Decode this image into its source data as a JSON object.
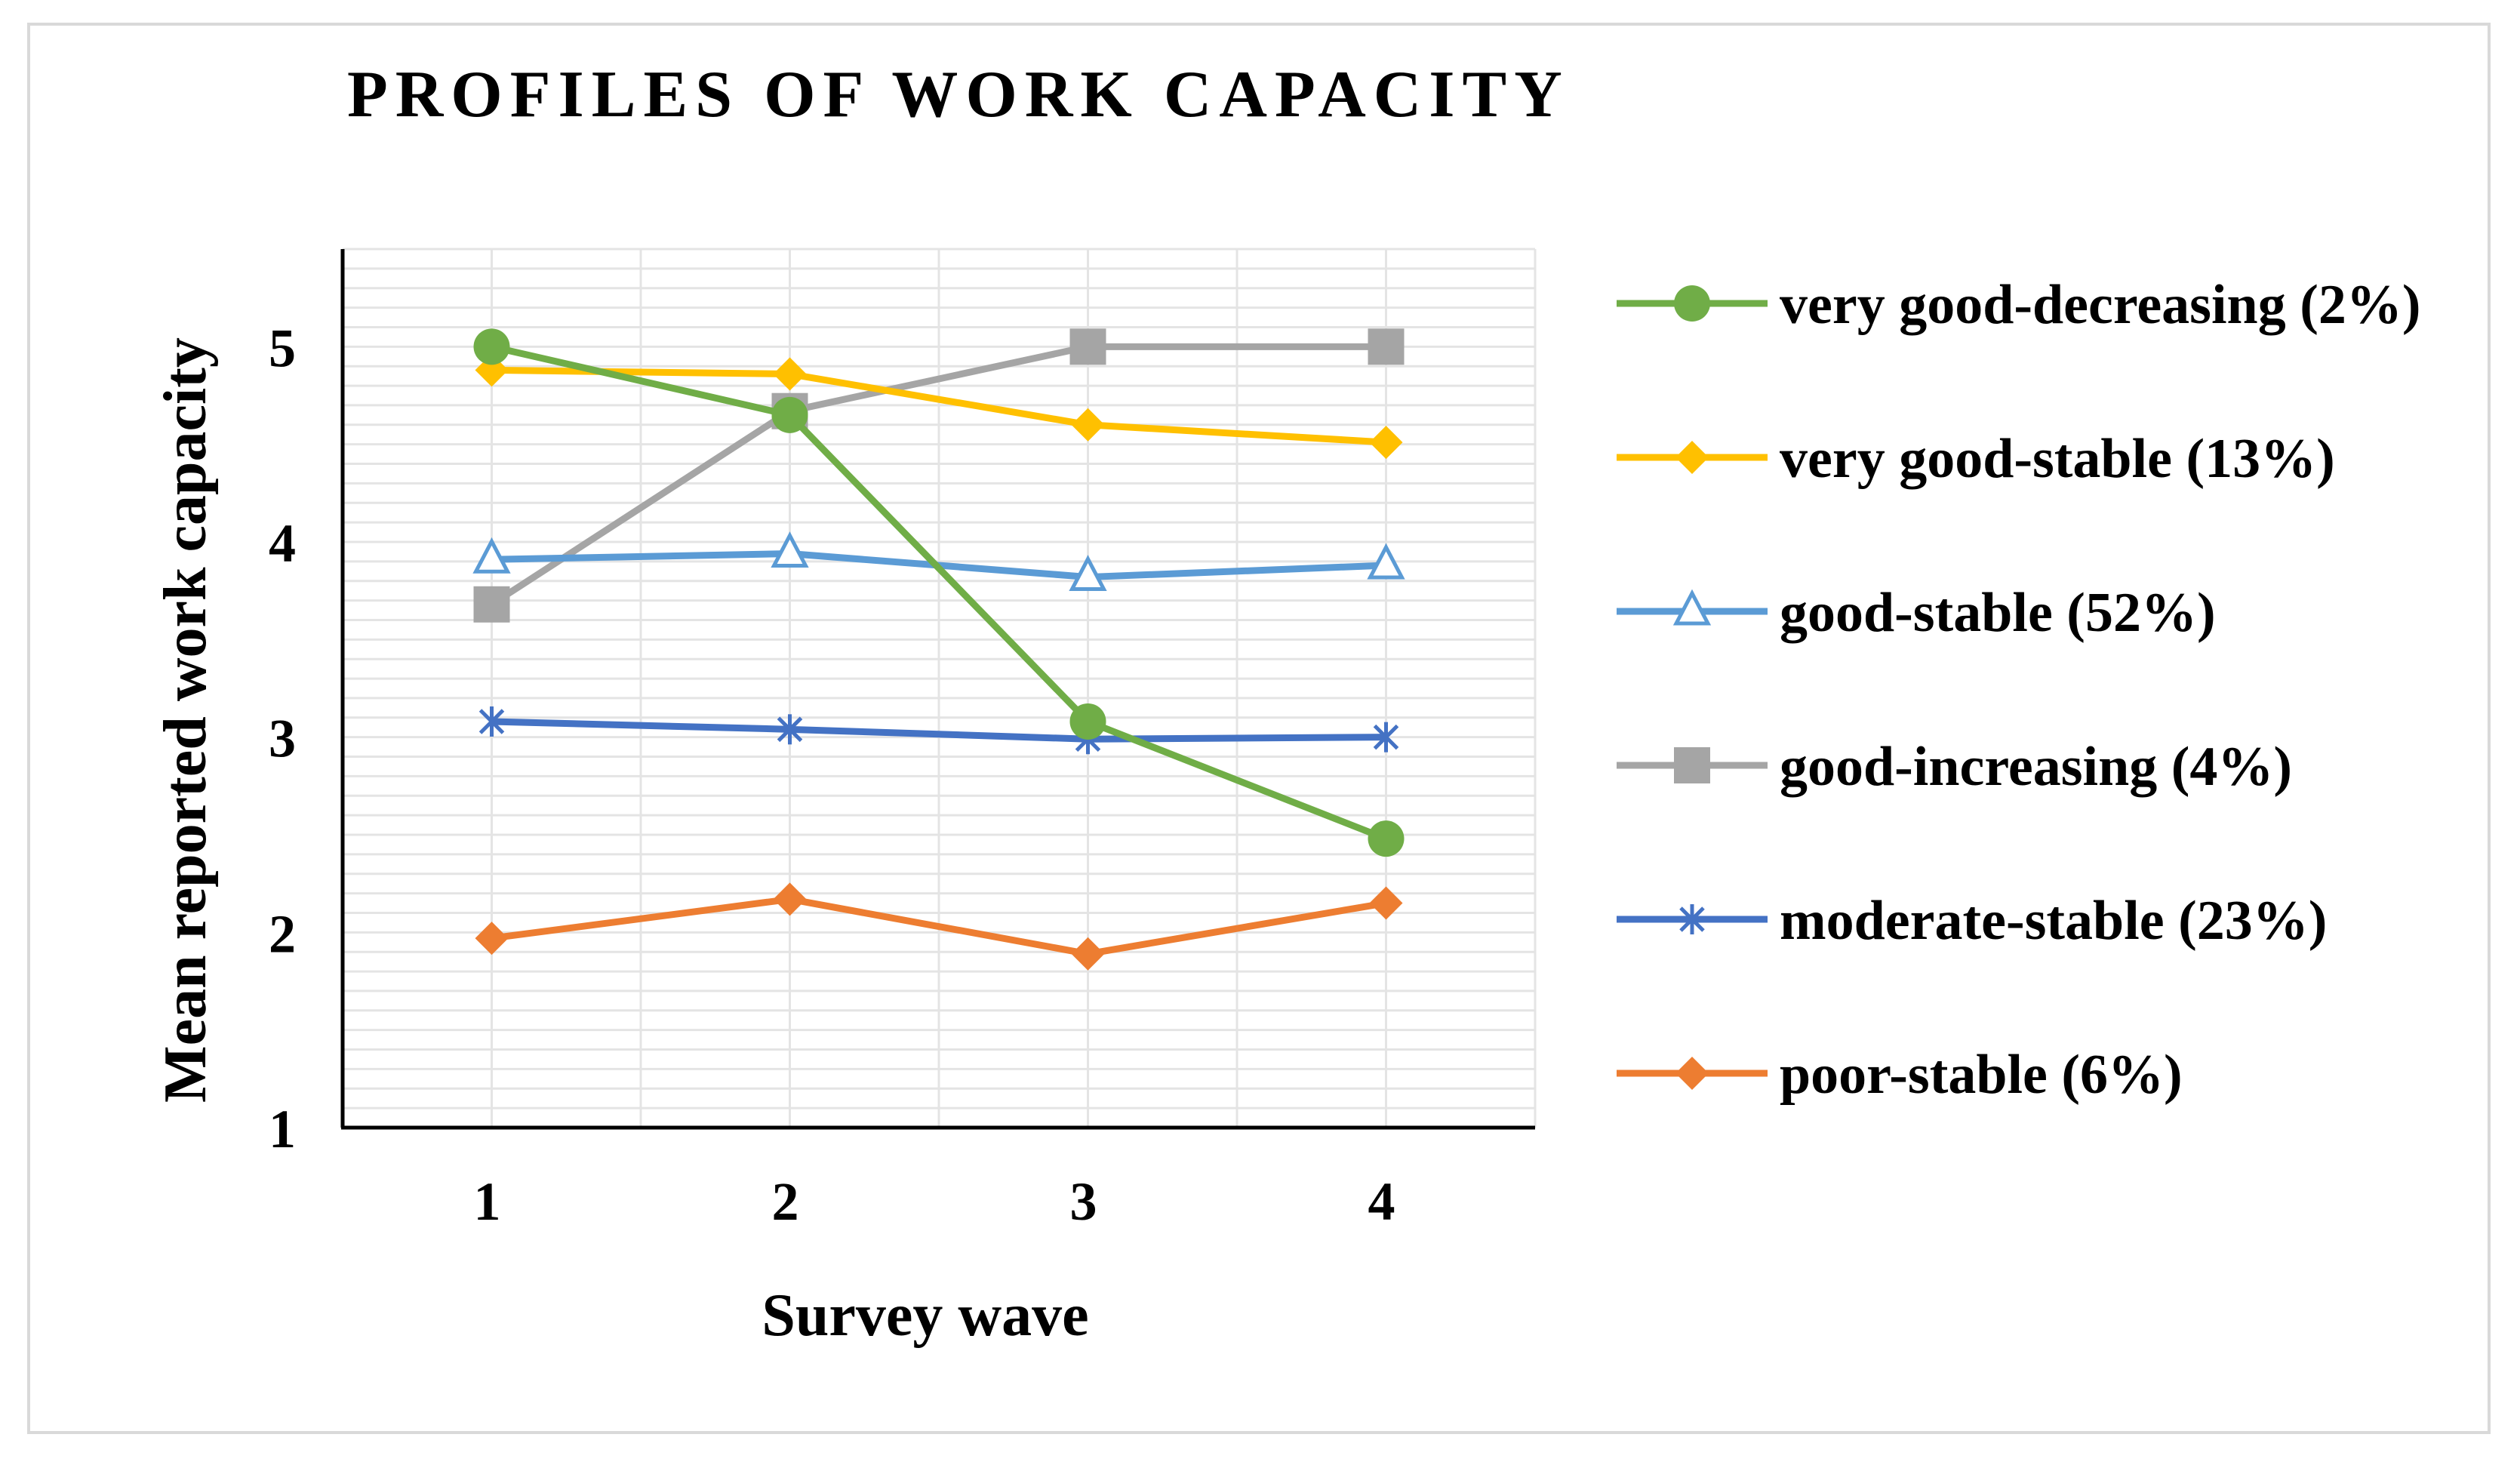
{
  "chart_data": {
    "type": "line",
    "title": "PROFILES OF WORK CAPACITY",
    "xlabel": "Survey wave",
    "ylabel": "Mean reported work capacity",
    "x": [
      1,
      2,
      3,
      4
    ],
    "x_tick_labels": [
      "1",
      "2",
      "3",
      "4"
    ],
    "ylim": [
      1,
      5.5
    ],
    "y_ticks": [
      1,
      2,
      3,
      4,
      5
    ],
    "y_tick_labels": [
      "1",
      "2",
      "3",
      "4",
      "5"
    ],
    "grid": true,
    "legend_position": "right",
    "series": [
      {
        "name": "very good-decreasing (2%)",
        "color": "#70ad47",
        "marker": "circle",
        "values": [
          5.0,
          4.65,
          3.08,
          2.48
        ]
      },
      {
        "name": "very good-stable (13%)",
        "color": "#ffc000",
        "marker": "diamond",
        "values": [
          4.88,
          4.86,
          4.6,
          4.51
        ]
      },
      {
        "name": "good-stable (52%)",
        "color": "#5b9bd5",
        "marker": "triangle-open",
        "values": [
          3.91,
          3.94,
          3.82,
          3.88
        ]
      },
      {
        "name": "good-increasing (4%)",
        "color": "#a5a5a5",
        "marker": "square",
        "values": [
          3.68,
          4.67,
          5.0,
          5.0
        ]
      },
      {
        "name": "moderate-stable (23%)",
        "color": "#4472c4",
        "marker": "asterisk",
        "values": [
          3.08,
          3.04,
          2.99,
          3.0
        ]
      },
      {
        "name": "poor-stable (6%)",
        "color": "#ed7d31",
        "marker": "diamond",
        "values": [
          1.97,
          2.17,
          1.89,
          2.15
        ]
      }
    ]
  }
}
